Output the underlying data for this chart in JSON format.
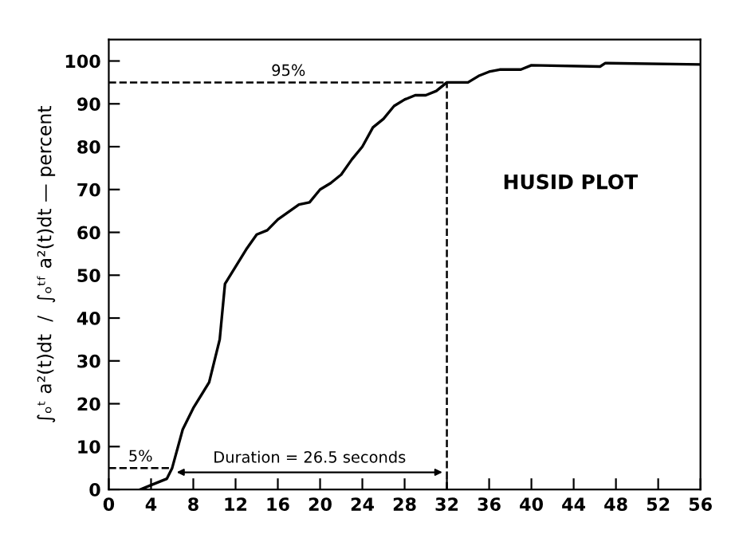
{
  "chart_data": {
    "type": "line",
    "ylabel": "∫ₒᵗ a²(t)dt  /  ∫ₒᵗᶠ a²(t)dt — percent",
    "x": [
      3,
      4,
      5.5,
      6,
      7,
      8,
      9.5,
      10.5,
      11,
      12,
      13,
      14,
      15,
      16,
      18,
      19,
      20,
      21,
      22,
      23,
      24,
      25,
      26,
      27,
      28,
      29,
      30,
      31,
      32,
      34,
      35,
      36,
      37,
      39,
      40,
      46.5,
      47,
      56
    ],
    "series": [
      {
        "color": "#000000",
        "values": [
          0,
          1,
          2.5,
          5,
          14,
          19,
          25,
          35,
          48,
          52,
          56,
          59.5,
          60.5,
          63,
          66.5,
          67,
          70,
          71.5,
          73.5,
          77,
          80,
          84.5,
          86.5,
          89.5,
          91,
          92,
          92,
          93,
          95,
          95,
          96.5,
          97.5,
          98,
          98,
          99,
          98.7,
          99.5,
          99.2
        ]
      }
    ],
    "xlim": [
      0,
      56
    ],
    "xticks": [
      0,
      4,
      8,
      12,
      16,
      20,
      24,
      28,
      32,
      36,
      40,
      44,
      48,
      52,
      56
    ],
    "ylim": [
      0,
      105
    ],
    "yticks": [
      0,
      10,
      20,
      30,
      40,
      50,
      60,
      70,
      80,
      90,
      100
    ],
    "ref_lines": [
      {
        "axis": "y",
        "value": 95,
        "label": "95%",
        "line_style": "dashed",
        "color": "#000000"
      },
      {
        "axis": "y",
        "value": 5,
        "label": "5%",
        "line_style": "dashed",
        "color": "#000000"
      },
      {
        "axis": "x",
        "value": 32,
        "line_style": "dashed",
        "color": "#000000"
      }
    ],
    "annotations": [
      "Duration = 26.5 seconds",
      "HUSID PLOT"
    ],
    "grid": false,
    "legend": false,
    "marker": "none",
    "line_style": "solid"
  }
}
